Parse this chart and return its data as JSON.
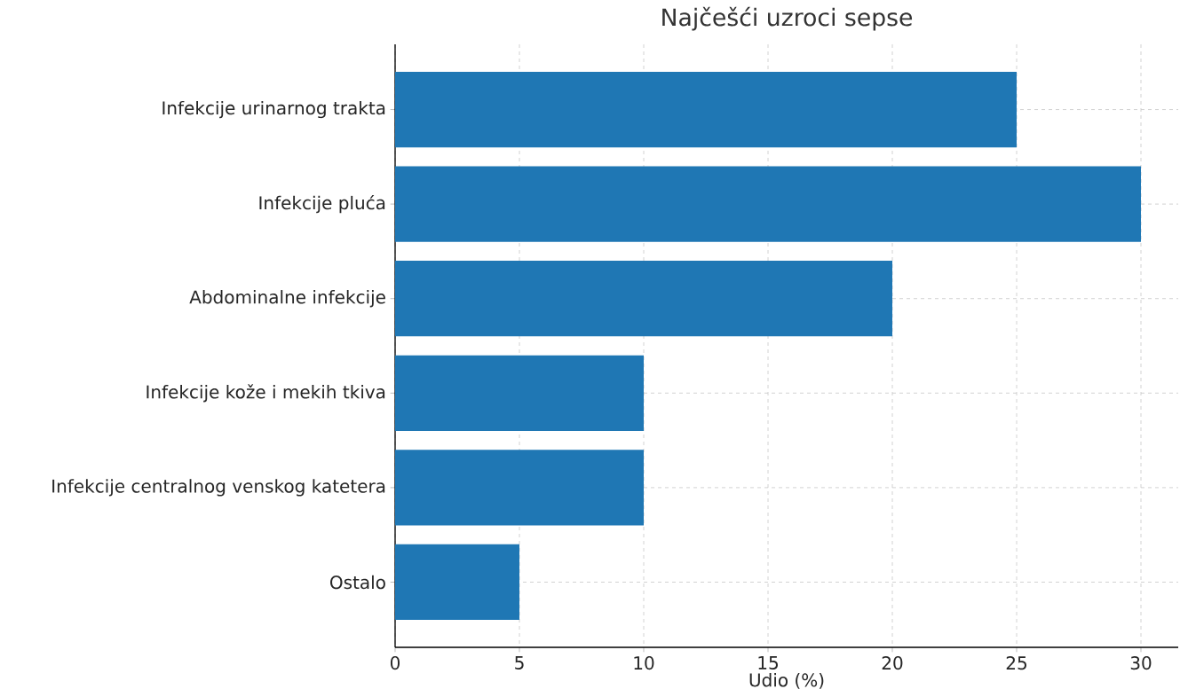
{
  "chart_data": {
    "type": "bar",
    "orientation": "horizontal",
    "title": "Najčešći uzroci sepse",
    "xlabel": "Udio (%)",
    "categories": [
      "Infekcije urinarnog trakta",
      "Infekcije pluća",
      "Abdominalne infekcije",
      "Infekcije kože i mekih tkiva",
      "Infekcije centralnog venskog katetera",
      "Ostalo"
    ],
    "values": [
      25,
      30,
      20,
      10,
      10,
      5
    ],
    "color": "#1f77b4",
    "xlim": [
      0,
      31.5
    ],
    "xticks": [
      0,
      5,
      10,
      15,
      20,
      25,
      30
    ],
    "grid": true
  }
}
